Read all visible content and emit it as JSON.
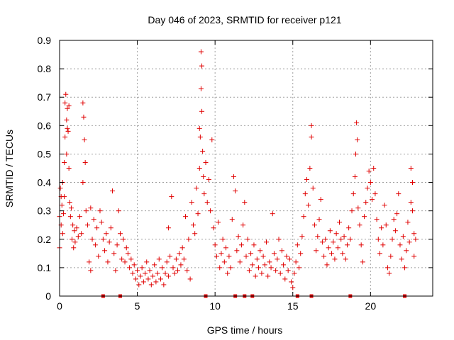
{
  "chart_data": {
    "type": "scatter",
    "title": "Day 046 of 2023, SRMTID for receiver p121",
    "xlabel": "GPS time / hours",
    "ylabel": "SRMTID / TECUs",
    "xlim": [
      0,
      24
    ],
    "ylim": [
      0,
      0.9
    ],
    "xticks": [
      0,
      5,
      10,
      15,
      20
    ],
    "xtick_labels": [
      "0",
      "5",
      "10",
      "15",
      "20"
    ],
    "yticks": [
      0,
      0.1,
      0.2,
      0.3,
      0.4,
      0.5,
      0.6,
      0.7,
      0.8,
      0.9
    ],
    "ytick_labels": [
      "0",
      "0.1",
      "0.2",
      "0.3",
      "0.4",
      "0.5",
      "0.6",
      "0.7",
      "0.8",
      "0.9"
    ],
    "grid": true,
    "legend": "none",
    "marker": "plus",
    "color": "#e00000",
    "edge_markers_x": [
      2.8,
      3.9,
      9.4,
      11.3,
      11.9,
      12.4,
      15.3,
      16.2,
      18.7,
      22.2
    ],
    "series": [
      {
        "name": "SRMTID",
        "points": [
          [
            0.0,
            0.17
          ],
          [
            0.0,
            0.28
          ],
          [
            0.05,
            0.38
          ],
          [
            0.1,
            0.35
          ],
          [
            0.1,
            0.25
          ],
          [
            0.15,
            0.32
          ],
          [
            0.2,
            0.22
          ],
          [
            0.2,
            0.4
          ],
          [
            0.25,
            0.29
          ],
          [
            0.3,
            0.35
          ],
          [
            0.3,
            0.47
          ],
          [
            0.35,
            0.56
          ],
          [
            0.35,
            0.68
          ],
          [
            0.4,
            0.71
          ],
          [
            0.45,
            0.62
          ],
          [
            0.45,
            0.5
          ],
          [
            0.5,
            0.66
          ],
          [
            0.5,
            0.59
          ],
          [
            0.55,
            0.58
          ],
          [
            0.6,
            0.67
          ],
          [
            0.6,
            0.45
          ],
          [
            0.65,
            0.33
          ],
          [
            0.7,
            0.28
          ],
          [
            0.75,
            0.31
          ],
          [
            0.8,
            0.2
          ],
          [
            0.85,
            0.25
          ],
          [
            0.9,
            0.17
          ],
          [
            0.95,
            0.23
          ],
          [
            1.0,
            0.19
          ],
          [
            1.1,
            0.24
          ],
          [
            1.2,
            0.21
          ],
          [
            1.3,
            0.28
          ],
          [
            1.4,
            0.22
          ],
          [
            1.5,
            0.4
          ],
          [
            1.5,
            0.68
          ],
          [
            1.55,
            0.63
          ],
          [
            1.6,
            0.55
          ],
          [
            1.65,
            0.47
          ],
          [
            1.7,
            0.3
          ],
          [
            1.8,
            0.25
          ],
          [
            1.9,
            0.12
          ],
          [
            2.0,
            0.09
          ],
          [
            2.0,
            0.31
          ],
          [
            2.1,
            0.2
          ],
          [
            2.2,
            0.27
          ],
          [
            2.3,
            0.18
          ],
          [
            2.4,
            0.24
          ],
          [
            2.5,
            0.14
          ],
          [
            2.6,
            0.3
          ],
          [
            2.7,
            0.26
          ],
          [
            2.8,
            0.2
          ],
          [
            2.9,
            0.16
          ],
          [
            3.0,
            0.22
          ],
          [
            3.1,
            0.12
          ],
          [
            3.2,
            0.19
          ],
          [
            3.3,
            0.24
          ],
          [
            3.4,
            0.37
          ],
          [
            3.5,
            0.15
          ],
          [
            3.6,
            0.09
          ],
          [
            3.7,
            0.18
          ],
          [
            3.8,
            0.3
          ],
          [
            3.9,
            0.22
          ],
          [
            4.0,
            0.13
          ],
          [
            4.1,
            0.2
          ],
          [
            4.2,
            0.12
          ],
          [
            4.3,
            0.17
          ],
          [
            4.4,
            0.15
          ],
          [
            4.5,
            0.1
          ],
          [
            4.6,
            0.13
          ],
          [
            4.7,
            0.08
          ],
          [
            4.8,
            0.11
          ],
          [
            4.9,
            0.06
          ],
          [
            5.0,
            0.09
          ],
          [
            5.1,
            0.04
          ],
          [
            5.2,
            0.07
          ],
          [
            5.3,
            0.1
          ],
          [
            5.4,
            0.05
          ],
          [
            5.5,
            0.08
          ],
          [
            5.6,
            0.12
          ],
          [
            5.7,
            0.06
          ],
          [
            5.8,
            0.09
          ],
          [
            5.9,
            0.04
          ],
          [
            6.0,
            0.07
          ],
          [
            6.1,
            0.11
          ],
          [
            6.2,
            0.05
          ],
          [
            6.3,
            0.08
          ],
          [
            6.4,
            0.13
          ],
          [
            6.5,
            0.06
          ],
          [
            6.6,
            0.1
          ],
          [
            6.7,
            0.04
          ],
          [
            6.8,
            0.08
          ],
          [
            6.9,
            0.12
          ],
          [
            7.0,
            0.07
          ],
          [
            7.0,
            0.24
          ],
          [
            7.1,
            0.14
          ],
          [
            7.2,
            0.35
          ],
          [
            7.3,
            0.1
          ],
          [
            7.4,
            0.08
          ],
          [
            7.5,
            0.13
          ],
          [
            7.6,
            0.09
          ],
          [
            7.7,
            0.15
          ],
          [
            7.8,
            0.11
          ],
          [
            7.9,
            0.17
          ],
          [
            8.0,
            0.13
          ],
          [
            8.1,
            0.28
          ],
          [
            8.2,
            0.09
          ],
          [
            8.3,
            0.2
          ],
          [
            8.4,
            0.06
          ],
          [
            8.5,
            0.33
          ],
          [
            8.6,
            0.25
          ],
          [
            8.7,
            0.22
          ],
          [
            8.8,
            0.38
          ],
          [
            8.9,
            0.29
          ],
          [
            9.0,
            0.45
          ],
          [
            9.0,
            0.59
          ],
          [
            9.05,
            0.56
          ],
          [
            9.1,
            0.86
          ],
          [
            9.1,
            0.73
          ],
          [
            9.15,
            0.81
          ],
          [
            9.15,
            0.65
          ],
          [
            9.2,
            0.51
          ],
          [
            9.25,
            0.42
          ],
          [
            9.3,
            0.36
          ],
          [
            9.4,
            0.47
          ],
          [
            9.5,
            0.33
          ],
          [
            9.6,
            0.41
          ],
          [
            9.7,
            0.3
          ],
          [
            9.8,
            0.55
          ],
          [
            9.9,
            0.24
          ],
          [
            10.0,
            0.18
          ],
          [
            10.1,
            0.14
          ],
          [
            10.2,
            0.26
          ],
          [
            10.3,
            0.1
          ],
          [
            10.4,
            0.15
          ],
          [
            10.5,
            0.2
          ],
          [
            10.6,
            0.12
          ],
          [
            10.7,
            0.17
          ],
          [
            10.8,
            0.08
          ],
          [
            10.9,
            0.14
          ],
          [
            11.0,
            0.1
          ],
          [
            11.1,
            0.27
          ],
          [
            11.2,
            0.42
          ],
          [
            11.3,
            0.37
          ],
          [
            11.4,
            0.16
          ],
          [
            11.5,
            0.21
          ],
          [
            11.6,
            0.12
          ],
          [
            11.7,
            0.18
          ],
          [
            11.8,
            0.25
          ],
          [
            11.9,
            0.33
          ],
          [
            12.0,
            0.14
          ],
          [
            12.1,
            0.2
          ],
          [
            12.2,
            0.09
          ],
          [
            12.3,
            0.15
          ],
          [
            12.4,
            0.11
          ],
          [
            12.5,
            0.18
          ],
          [
            12.6,
            0.07
          ],
          [
            12.7,
            0.13
          ],
          [
            12.8,
            0.1
          ],
          [
            12.9,
            0.16
          ],
          [
            13.0,
            0.08
          ],
          [
            13.1,
            0.14
          ],
          [
            13.2,
            0.11
          ],
          [
            13.3,
            0.19
          ],
          [
            13.4,
            0.07
          ],
          [
            13.5,
            0.12
          ],
          [
            13.6,
            0.1
          ],
          [
            13.7,
            0.29
          ],
          [
            13.8,
            0.15
          ],
          [
            13.9,
            0.09
          ],
          [
            14.0,
            0.13
          ],
          [
            14.1,
            0.2
          ],
          [
            14.2,
            0.08
          ],
          [
            14.3,
            0.16
          ],
          [
            14.4,
            0.11
          ],
          [
            14.5,
            0.06
          ],
          [
            14.6,
            0.14
          ],
          [
            14.7,
            0.09
          ],
          [
            14.8,
            0.13
          ],
          [
            14.9,
            0.05
          ],
          [
            15.0,
            0.03
          ],
          [
            15.1,
            0.08
          ],
          [
            15.2,
            0.12
          ],
          [
            15.3,
            0.18
          ],
          [
            15.4,
            0.1
          ],
          [
            15.5,
            0.15
          ],
          [
            15.6,
            0.21
          ],
          [
            15.7,
            0.28
          ],
          [
            15.8,
            0.36
          ],
          [
            15.9,
            0.41
          ],
          [
            16.0,
            0.32
          ],
          [
            16.1,
            0.45
          ],
          [
            16.2,
            0.56
          ],
          [
            16.2,
            0.6
          ],
          [
            16.3,
            0.38
          ],
          [
            16.4,
            0.25
          ],
          [
            16.5,
            0.16
          ],
          [
            16.6,
            0.21
          ],
          [
            16.7,
            0.27
          ],
          [
            16.8,
            0.34
          ],
          [
            16.9,
            0.19
          ],
          [
            17.0,
            0.14
          ],
          [
            17.1,
            0.2
          ],
          [
            17.2,
            0.11
          ],
          [
            17.3,
            0.17
          ],
          [
            17.4,
            0.23
          ],
          [
            17.5,
            0.15
          ],
          [
            17.6,
            0.19
          ],
          [
            17.7,
            0.13
          ],
          [
            17.8,
            0.22
          ],
          [
            17.9,
            0.17
          ],
          [
            18.0,
            0.26
          ],
          [
            18.1,
            0.2
          ],
          [
            18.2,
            0.15
          ],
          [
            18.3,
            0.21
          ],
          [
            18.4,
            0.13
          ],
          [
            18.5,
            0.18
          ],
          [
            18.6,
            0.24
          ],
          [
            18.7,
            0.2
          ],
          [
            18.8,
            0.3
          ],
          [
            18.9,
            0.36
          ],
          [
            19.0,
            0.42
          ],
          [
            19.05,
            0.5
          ],
          [
            19.1,
            0.61
          ],
          [
            19.15,
            0.55
          ],
          [
            19.2,
            0.31
          ],
          [
            19.3,
            0.25
          ],
          [
            19.4,
            0.18
          ],
          [
            19.5,
            0.12
          ],
          [
            19.6,
            0.28
          ],
          [
            19.7,
            0.33
          ],
          [
            19.8,
            0.38
          ],
          [
            19.9,
            0.44
          ],
          [
            20.0,
            0.4
          ],
          [
            20.1,
            0.34
          ],
          [
            20.2,
            0.45
          ],
          [
            20.3,
            0.36
          ],
          [
            20.4,
            0.27
          ],
          [
            20.5,
            0.2
          ],
          [
            20.6,
            0.15
          ],
          [
            20.7,
            0.24
          ],
          [
            20.8,
            0.18
          ],
          [
            20.9,
            0.32
          ],
          [
            21.0,
            0.25
          ],
          [
            21.1,
            0.1
          ],
          [
            21.2,
            0.08
          ],
          [
            21.3,
            0.14
          ],
          [
            21.4,
            0.2
          ],
          [
            21.5,
            0.27
          ],
          [
            21.6,
            0.23
          ],
          [
            21.7,
            0.29
          ],
          [
            21.8,
            0.36
          ],
          [
            21.9,
            0.18
          ],
          [
            22.0,
            0.13
          ],
          [
            22.1,
            0.21
          ],
          [
            22.2,
            0.1
          ],
          [
            22.3,
            0.16
          ],
          [
            22.4,
            0.26
          ],
          [
            22.5,
            0.19
          ],
          [
            22.6,
            0.33
          ],
          [
            22.6,
            0.45
          ],
          [
            22.7,
            0.4
          ],
          [
            22.7,
            0.3
          ],
          [
            22.8,
            0.22
          ],
          [
            22.8,
            0.14
          ],
          [
            22.9,
            0.2
          ]
        ]
      }
    ]
  }
}
